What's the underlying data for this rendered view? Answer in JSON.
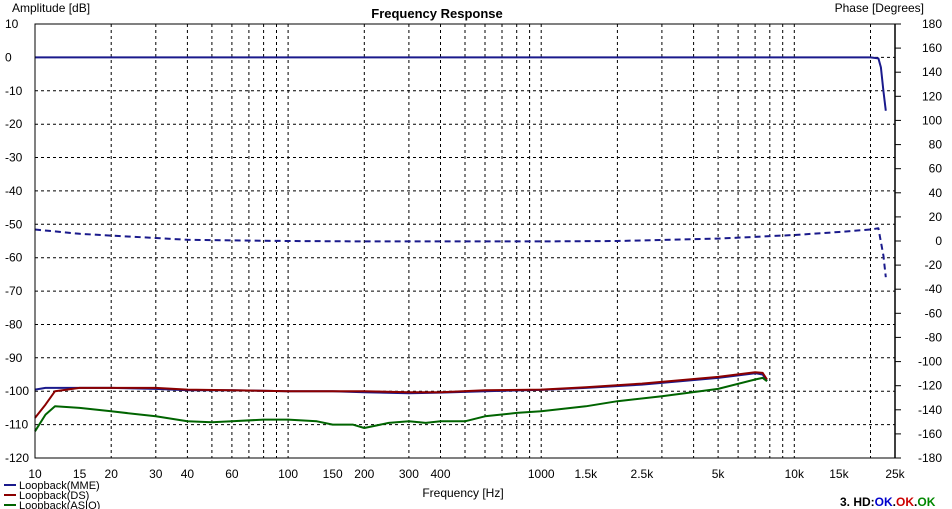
{
  "chart_data": {
    "type": "line",
    "title": "Frequency Response",
    "xlabel": "Frequency [Hz]",
    "ylabel_left": "Amplitude [dB]",
    "ylabel_right": "Phase [Degrees]",
    "x_scale": "log",
    "xlim": [
      10,
      25000
    ],
    "ylim_left": [
      -120,
      10
    ],
    "ylim_right": [
      -180,
      180
    ],
    "grid": true,
    "legend_position": "bottom-left",
    "x_ticks": [
      {
        "v": 10,
        "label": "10"
      },
      {
        "v": 15,
        "label": "15"
      },
      {
        "v": 20,
        "label": "20"
      },
      {
        "v": 30,
        "label": "30"
      },
      {
        "v": 40,
        "label": "40"
      },
      {
        "v": 60,
        "label": "60"
      },
      {
        "v": 100,
        "label": "100"
      },
      {
        "v": 150,
        "label": "150"
      },
      {
        "v": 200,
        "label": "200"
      },
      {
        "v": 300,
        "label": "300"
      },
      {
        "v": 400,
        "label": "400"
      },
      {
        "v": 1000,
        "label": "1000"
      },
      {
        "v": 1500,
        "label": "1.5k"
      },
      {
        "v": 2500,
        "label": "2.5k"
      },
      {
        "v": 5000,
        "label": "5k"
      },
      {
        "v": 10000,
        "label": "10k"
      },
      {
        "v": 15000,
        "label": "15k"
      },
      {
        "v": 25000,
        "label": "25k"
      }
    ],
    "x_gridlines": [
      10,
      20,
      30,
      40,
      50,
      60,
      70,
      80,
      90,
      100,
      200,
      300,
      400,
      500,
      600,
      700,
      800,
      900,
      1000,
      2000,
      3000,
      4000,
      5000,
      6000,
      7000,
      8000,
      9000,
      10000,
      20000
    ],
    "y_left_ticks": [
      10,
      0,
      -10,
      -20,
      -30,
      -40,
      -50,
      -60,
      -70,
      -80,
      -90,
      -100,
      -110,
      -120
    ],
    "y_right_ticks": [
      180,
      160,
      140,
      120,
      100,
      80,
      60,
      40,
      20,
      0,
      -20,
      -40,
      -60,
      -80,
      -100,
      -120,
      -140,
      -160,
      -180
    ],
    "series": [
      {
        "name": "Loopback(MME)",
        "color": "#1a1a8c",
        "axis": "left",
        "style": "solid",
        "points": [
          [
            10,
            -99.5
          ],
          [
            11,
            -99
          ],
          [
            12,
            -99
          ],
          [
            15,
            -99
          ],
          [
            20,
            -99
          ],
          [
            30,
            -99.3
          ],
          [
            40,
            -99.7
          ],
          [
            60,
            -99.7
          ],
          [
            100,
            -100
          ],
          [
            150,
            -100
          ],
          [
            200,
            -100.3
          ],
          [
            300,
            -100.6
          ],
          [
            400,
            -100.4
          ],
          [
            600,
            -100
          ],
          [
            1000,
            -99.6
          ],
          [
            1500,
            -99
          ],
          [
            2500,
            -98
          ],
          [
            5000,
            -96
          ],
          [
            7000,
            -94.6
          ],
          [
            7500,
            -95
          ],
          [
            7800,
            -97
          ]
        ]
      },
      {
        "name": "Loopback(DS)",
        "color": "#8b0000",
        "axis": "left",
        "style": "solid",
        "points": [
          [
            10,
            -108
          ],
          [
            11,
            -104
          ],
          [
            12,
            -100
          ],
          [
            15,
            -99
          ],
          [
            20,
            -99
          ],
          [
            30,
            -99
          ],
          [
            40,
            -99.5
          ],
          [
            60,
            -99.7
          ],
          [
            100,
            -100
          ],
          [
            150,
            -100
          ],
          [
            200,
            -100
          ],
          [
            300,
            -100.3
          ],
          [
            400,
            -100.3
          ],
          [
            600,
            -99.7
          ],
          [
            1000,
            -99.5
          ],
          [
            1500,
            -98.8
          ],
          [
            2500,
            -97.7
          ],
          [
            5000,
            -95.7
          ],
          [
            7000,
            -94.3
          ],
          [
            7500,
            -94.5
          ],
          [
            7800,
            -96.5
          ]
        ]
      },
      {
        "name": "Loopback(ASIO)",
        "color": "#006400",
        "axis": "left",
        "style": "solid",
        "points": [
          [
            10,
            -112
          ],
          [
            11,
            -107
          ],
          [
            12,
            -104.5
          ],
          [
            15,
            -105
          ],
          [
            20,
            -106
          ],
          [
            30,
            -107.5
          ],
          [
            40,
            -109
          ],
          [
            50,
            -109.3
          ],
          [
            60,
            -109
          ],
          [
            80,
            -108.5
          ],
          [
            100,
            -108.5
          ],
          [
            130,
            -109
          ],
          [
            150,
            -110
          ],
          [
            180,
            -110
          ],
          [
            200,
            -111
          ],
          [
            250,
            -109.5
          ],
          [
            300,
            -109
          ],
          [
            350,
            -109.5
          ],
          [
            400,
            -109
          ],
          [
            500,
            -109
          ],
          [
            600,
            -107.5
          ],
          [
            800,
            -106.5
          ],
          [
            1000,
            -106
          ],
          [
            1500,
            -104.5
          ],
          [
            2000,
            -103
          ],
          [
            3000,
            -101.5
          ],
          [
            5000,
            -99.3
          ],
          [
            7000,
            -96.5
          ],
          [
            7500,
            -96
          ],
          [
            7800,
            -97
          ]
        ]
      },
      {
        "name": "Phase",
        "color": "#1a1a8c",
        "axis": "right",
        "style": "dashed",
        "points": [
          [
            10,
            9.5
          ],
          [
            15,
            6
          ],
          [
            20,
            4.5
          ],
          [
            30,
            2.5
          ],
          [
            40,
            1
          ],
          [
            60,
            0.5
          ],
          [
            100,
            0
          ],
          [
            200,
            -0.3
          ],
          [
            400,
            -0.3
          ],
          [
            1000,
            -0.3
          ],
          [
            2000,
            0
          ],
          [
            5000,
            2
          ],
          [
            10000,
            5
          ],
          [
            15000,
            7.5
          ],
          [
            20000,
            9.5
          ],
          [
            21500,
            10.5
          ],
          [
            22500,
            -12
          ],
          [
            23000,
            -30
          ]
        ]
      },
      {
        "name": "Amplitude",
        "color": "#1a1a8c",
        "axis": "left",
        "style": "solid",
        "points": [
          [
            10,
            0
          ],
          [
            100,
            0
          ],
          [
            1000,
            0
          ],
          [
            10000,
            0
          ],
          [
            20000,
            0
          ],
          [
            21500,
            -0.3
          ],
          [
            22000,
            -3
          ],
          [
            22500,
            -10
          ],
          [
            23000,
            -16
          ]
        ]
      }
    ],
    "legend": [
      "Loopback(MME)",
      "Loopback(DS)",
      "Loopback(ASIO)"
    ]
  },
  "status": {
    "prefix": "3. HD:",
    "items": [
      {
        "text": "OK",
        "color": "#0000cc"
      },
      {
        "text": ".",
        "color": "#000000"
      },
      {
        "text": "OK",
        "color": "#cc0000"
      },
      {
        "text": ".",
        "color": "#000000"
      },
      {
        "text": "OK",
        "color": "#008800"
      }
    ]
  }
}
